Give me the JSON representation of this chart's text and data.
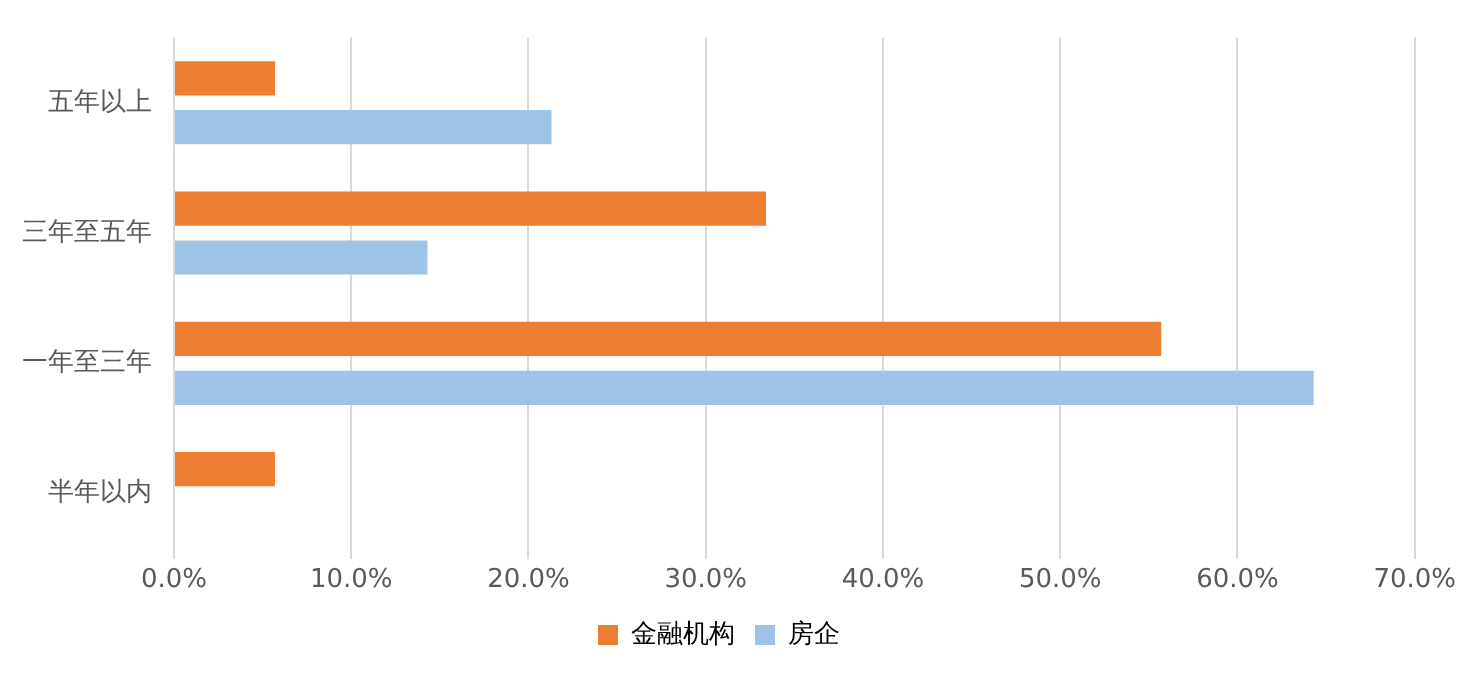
{
  "chart_data": {
    "type": "bar",
    "orientation": "horizontal",
    "categories": [
      "五年以上",
      "三年至五年",
      "一年至三年",
      "半年以内"
    ],
    "series": [
      {
        "name": "金融机构",
        "color": "#ed7d31",
        "values": [
          5.7,
          33.4,
          55.7,
          5.7
        ]
      },
      {
        "name": "房企",
        "color": "#9dc3e6",
        "values": [
          21.3,
          14.3,
          64.3,
          null
        ]
      }
    ],
    "xlim": [
      0,
      70
    ],
    "xticks": [
      {
        "value": 0,
        "label": "0.0%"
      },
      {
        "value": 10,
        "label": "10.0%"
      },
      {
        "value": 20,
        "label": "20.0%"
      },
      {
        "value": 30,
        "label": "30.0%"
      },
      {
        "value": 40,
        "label": "40.0%"
      },
      {
        "value": 50,
        "label": "50.0%"
      },
      {
        "value": 60,
        "label": "60.0%"
      },
      {
        "value": 70,
        "label": "70.0%"
      }
    ],
    "grid": "x",
    "legend": "bottom"
  }
}
